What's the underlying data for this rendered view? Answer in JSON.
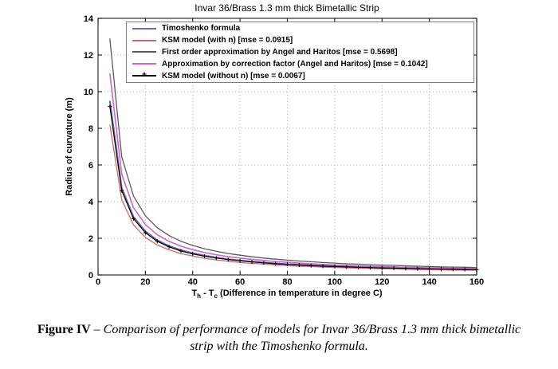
{
  "chart": {
    "title": "Invar 36/Brass 1.3 mm thick Bimetallic Strip",
    "ylabel": "Radius of curvature (m)",
    "xlabel": {
      "p1": "T",
      "sub1": "h",
      "p2": " - T",
      "sub2": "c",
      "p3": " (Difference in temperature in degree C)"
    }
  },
  "chart_data": {
    "type": "line",
    "title": "Invar 36/Brass 1.3 mm thick Bimetallic Strip",
    "xlabel": "Th - Tc (Difference in temperature in degree C)",
    "ylabel": "Radius of curvature (m)",
    "xlim": [
      0,
      160
    ],
    "ylim": [
      0,
      14
    ],
    "xticks": [
      0,
      20,
      40,
      60,
      80,
      100,
      120,
      140,
      160
    ],
    "yticks": [
      0,
      2,
      4,
      6,
      8,
      10,
      12,
      14
    ],
    "grid": "dotted",
    "grid_color": "#ababab",
    "frame_color": "#2b2b2b",
    "legend_position": "top-left-inside",
    "x": [
      5,
      10,
      15,
      20,
      25,
      30,
      35,
      40,
      45,
      50,
      55,
      60,
      65,
      70,
      75,
      80,
      85,
      90,
      95,
      100,
      105,
      110,
      115,
      120,
      125,
      130,
      135,
      140,
      145,
      150,
      155,
      160
    ],
    "series": [
      {
        "name": "Timoshenko formula",
        "color": "#6a6ab0",
        "line_width": 2,
        "marker": "none",
        "values": [
          9.5,
          4.75,
          3.17,
          2.38,
          1.9,
          1.58,
          1.36,
          1.19,
          1.06,
          0.95,
          0.86,
          0.79,
          0.73,
          0.68,
          0.63,
          0.59,
          0.56,
          0.53,
          0.5,
          0.48,
          0.45,
          0.43,
          0.41,
          0.4,
          0.38,
          0.37,
          0.35,
          0.34,
          0.33,
          0.32,
          0.31,
          0.3
        ]
      },
      {
        "name": "KSM model (with n) [mse = 0.0915]",
        "color": "#c86a6a",
        "line_width": 1.3,
        "marker": "none",
        "values": [
          8.2,
          4.1,
          2.73,
          2.05,
          1.64,
          1.37,
          1.17,
          1.03,
          0.91,
          0.82,
          0.75,
          0.68,
          0.63,
          0.59,
          0.55,
          0.51,
          0.48,
          0.46,
          0.43,
          0.41,
          0.39,
          0.37,
          0.36,
          0.34,
          0.33,
          0.32,
          0.3,
          0.29,
          0.28,
          0.27,
          0.26,
          0.26
        ]
      },
      {
        "name": "First order approximation by Angel and Haritos [mse = 0.5698]",
        "color": "#595959",
        "line_width": 1.3,
        "marker": "none",
        "values": [
          12.9,
          6.45,
          4.3,
          3.23,
          2.58,
          2.15,
          1.84,
          1.61,
          1.43,
          1.29,
          1.17,
          1.08,
          0.99,
          0.92,
          0.86,
          0.81,
          0.76,
          0.72,
          0.68,
          0.65,
          0.61,
          0.59,
          0.56,
          0.54,
          0.52,
          0.5,
          0.48,
          0.46,
          0.44,
          0.43,
          0.42,
          0.4
        ]
      },
      {
        "name": "Approximation by correction factor (Angel and Haritos) [mse = 0.1042]",
        "color": "#cc66cc",
        "line_width": 1.6,
        "marker": "none",
        "values": [
          11,
          5.5,
          3.67,
          2.75,
          2.2,
          1.83,
          1.57,
          1.38,
          1.22,
          1.1,
          1,
          0.92,
          0.85,
          0.79,
          0.73,
          0.69,
          0.65,
          0.61,
          0.58,
          0.55,
          0.52,
          0.5,
          0.48,
          0.46,
          0.44,
          0.42,
          0.41,
          0.39,
          0.38,
          0.37,
          0.35,
          0.34
        ]
      },
      {
        "name": "KSM model (without n) [mse = 0.0067]",
        "color": "#000000",
        "line_width": 1.2,
        "marker": "plus",
        "values": [
          9.2,
          4.6,
          3.07,
          2.3,
          1.84,
          1.53,
          1.31,
          1.15,
          1.02,
          0.92,
          0.84,
          0.77,
          0.71,
          0.66,
          0.61,
          0.58,
          0.54,
          0.51,
          0.48,
          0.46,
          0.44,
          0.42,
          0.4,
          0.38,
          0.37,
          0.35,
          0.34,
          0.33,
          0.32,
          0.31,
          0.3,
          0.29
        ]
      }
    ]
  },
  "caption": {
    "label": "Figure IV",
    "separator": "–",
    "line1": "Comparison of performance of models for Invar 36/Brass 1.3 mm thick bimetallic",
    "line2": "strip with the Timoshenko formula."
  }
}
